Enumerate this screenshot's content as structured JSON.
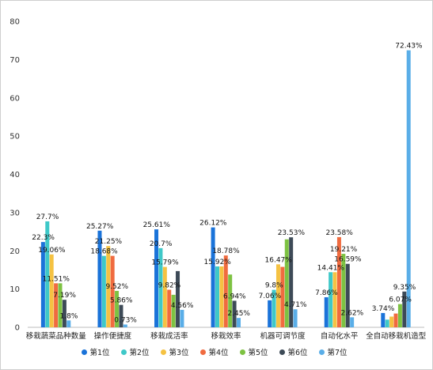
{
  "chart_data": {
    "type": "bar",
    "title": "",
    "xlabel": "",
    "ylabel": "",
    "ylim": [
      0,
      80
    ],
    "yticks": [
      0,
      10,
      20,
      30,
      40,
      50,
      60,
      70,
      80
    ],
    "grid": false,
    "legend_position": "bottom",
    "categories": [
      "移栽蔬菜品种数量",
      "操作便捷度",
      "移栽成活率",
      "移栽效率",
      "机器可调节度",
      "自动化水平",
      "全自动移栽机造型"
    ],
    "series": [
      {
        "name": "第1位",
        "color": "#1a73d9",
        "values": [
          22.3,
          25.27,
          25.61,
          26.12,
          7.06,
          7.86,
          3.74
        ]
      },
      {
        "name": "第2位",
        "color": "#3ec8c8",
        "values": [
          27.7,
          18.68,
          20.7,
          15.92,
          9.8,
          14.41,
          2.0
        ]
      },
      {
        "name": "第3位",
        "color": "#f5c242",
        "values": [
          19.06,
          21.25,
          15.79,
          15.92,
          16.47,
          14.41,
          2.8
        ]
      },
      {
        "name": "第4位",
        "color": "#f06b3f",
        "values": [
          11.51,
          18.68,
          9.82,
          18.78,
          15.8,
          23.58,
          3.6
        ]
      },
      {
        "name": "第5位",
        "color": "#7dc242",
        "values": [
          11.51,
          9.52,
          8.5,
          13.8,
          23.0,
          19.21,
          6.07
        ]
      },
      {
        "name": "第6位",
        "color": "#3d4a57",
        "values": [
          7.19,
          5.86,
          14.7,
          6.94,
          23.53,
          16.59,
          9.35
        ]
      },
      {
        "name": "第7位",
        "color": "#5aaee8",
        "values": [
          1.8,
          0.73,
          4.56,
          2.45,
          4.71,
          2.62,
          72.43
        ]
      }
    ],
    "data_labels": [
      [
        {
          "s": 0,
          "text": "22.3%"
        },
        {
          "s": 1,
          "text": "27.7%"
        },
        {
          "s": 2,
          "text": "19.06%"
        },
        {
          "s": 3,
          "text": "11.51%"
        },
        {
          "s": 5,
          "text": "7.19%"
        },
        {
          "s": 6,
          "text": "1.8%"
        }
      ],
      [
        {
          "s": 0,
          "text": "25.27%"
        },
        {
          "s": 1,
          "text": "18.68%"
        },
        {
          "s": 2,
          "text": "21.25%"
        },
        {
          "s": 4,
          "text": "9.52%"
        },
        {
          "s": 5,
          "text": "5.86%"
        },
        {
          "s": 6,
          "text": "0.73%"
        }
      ],
      [
        {
          "s": 0,
          "text": "25.61%"
        },
        {
          "s": 1,
          "text": "20.7%"
        },
        {
          "s": 2,
          "text": "15.79%"
        },
        {
          "s": 3,
          "text": "9.82%"
        },
        {
          "s": 6,
          "text": "4.56%"
        }
      ],
      [
        {
          "s": 0,
          "text": "26.12%"
        },
        {
          "s": 1,
          "text": "15.92%"
        },
        {
          "s": 3,
          "text": "18.78%"
        },
        {
          "s": 5,
          "text": "6.94%"
        },
        {
          "s": 6,
          "text": "2.45%"
        }
      ],
      [
        {
          "s": 0,
          "text": "7.06%"
        },
        {
          "s": 1,
          "text": "9.8%"
        },
        {
          "s": 2,
          "text": "16.47%"
        },
        {
          "s": 5,
          "text": "23.53%"
        },
        {
          "s": 6,
          "text": "4.71%"
        }
      ],
      [
        {
          "s": 0,
          "text": "7.86%"
        },
        {
          "s": 1,
          "text": "14.41%"
        },
        {
          "s": 3,
          "text": "23.58%"
        },
        {
          "s": 4,
          "text": "19.21%"
        },
        {
          "s": 5,
          "text": "16.59%"
        },
        {
          "s": 6,
          "text": "2.62%"
        }
      ],
      [
        {
          "s": 0,
          "text": "3.74%"
        },
        {
          "s": 4,
          "text": "6.07%"
        },
        {
          "s": 5,
          "text": "9.35%"
        },
        {
          "s": 6,
          "text": "72.43%"
        }
      ]
    ]
  }
}
